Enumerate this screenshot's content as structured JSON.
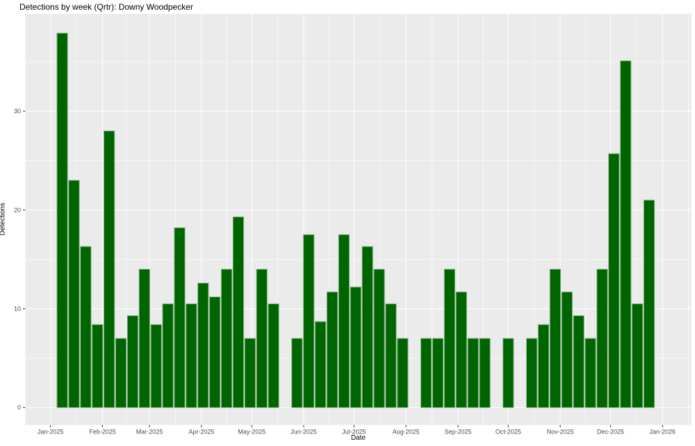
{
  "title": "Detections by week (Qrtr): Downy Woodpecker",
  "chart_data": {
    "type": "bar",
    "title": "Detections by week (Qrtr): Downy Woodpecker",
    "xlabel": "Date",
    "ylabel": "Detections",
    "ylim": [
      0,
      39.9
    ],
    "y_major_ticks": [
      0,
      10,
      20,
      30
    ],
    "y_minor_ticks": [
      5,
      15,
      25,
      35
    ],
    "x_ticks": [
      {
        "label": "Jan-2025",
        "day": 0
      },
      {
        "label": "Feb-2025",
        "day": 31
      },
      {
        "label": "Mar-2025",
        "day": 59
      },
      {
        "label": "Apr-2025",
        "day": 90
      },
      {
        "label": "May-2025",
        "day": 120
      },
      {
        "label": "Jun-2025",
        "day": 151
      },
      {
        "label": "Jul-2025",
        "day": 181
      },
      {
        "label": "Aug-2025",
        "day": 212
      },
      {
        "label": "Sep-2025",
        "day": 243
      },
      {
        "label": "Oct-2025",
        "day": 273
      },
      {
        "label": "Nov-2025",
        "day": 304
      },
      {
        "label": "Dec-2025",
        "day": 334
      },
      {
        "label": "Jan-2026",
        "day": 365
      }
    ],
    "grid": true,
    "legend": "none",
    "panel_bg": "#EBEBEB",
    "grid_major_color": "#FFFFFF",
    "grid_minor_color": "#FFFFFF",
    "tick_color": "#333333",
    "tick_label_color": "#4D4D4D",
    "bar_fill": "#006400",
    "bar_border": "#7DB07D",
    "bars": [
      {
        "week": 1,
        "value": 37.9
      },
      {
        "week": 2,
        "value": 23.0
      },
      {
        "week": 3,
        "value": 16.3
      },
      {
        "week": 4,
        "value": 8.4
      },
      {
        "week": 5,
        "value": 28.0
      },
      {
        "week": 6,
        "value": 7.0
      },
      {
        "week": 7,
        "value": 9.3
      },
      {
        "week": 8,
        "value": 14.0
      },
      {
        "week": 9,
        "value": 8.4
      },
      {
        "week": 10,
        "value": 10.5
      },
      {
        "week": 11,
        "value": 18.2
      },
      {
        "week": 12,
        "value": 10.5
      },
      {
        "week": 13,
        "value": 12.6
      },
      {
        "week": 14,
        "value": 11.2
      },
      {
        "week": 15,
        "value": 14.0
      },
      {
        "week": 16,
        "value": 19.3
      },
      {
        "week": 17,
        "value": 7.0
      },
      {
        "week": 18,
        "value": 14.0
      },
      {
        "week": 19,
        "value": 10.5
      },
      {
        "week": 21,
        "value": 7.0
      },
      {
        "week": 22,
        "value": 17.5
      },
      {
        "week": 23,
        "value": 8.7
      },
      {
        "week": 24,
        "value": 11.7
      },
      {
        "week": 25,
        "value": 17.5
      },
      {
        "week": 26,
        "value": 12.2
      },
      {
        "week": 27,
        "value": 16.3
      },
      {
        "week": 28,
        "value": 14.0
      },
      {
        "week": 29,
        "value": 10.5
      },
      {
        "week": 30,
        "value": 7.0
      },
      {
        "week": 32,
        "value": 7.0
      },
      {
        "week": 33,
        "value": 7.0
      },
      {
        "week": 34,
        "value": 14.0
      },
      {
        "week": 35,
        "value": 11.7
      },
      {
        "week": 36,
        "value": 7.0
      },
      {
        "week": 37,
        "value": 7.0
      },
      {
        "week": 39,
        "value": 7.0
      },
      {
        "week": 41,
        "value": 7.0
      },
      {
        "week": 42,
        "value": 8.4
      },
      {
        "week": 43,
        "value": 14.0
      },
      {
        "week": 44,
        "value": 11.7
      },
      {
        "week": 45,
        "value": 9.3
      },
      {
        "week": 46,
        "value": 7.0
      },
      {
        "week": 47,
        "value": 14.0
      },
      {
        "week": 48,
        "value": 25.7
      },
      {
        "week": 49,
        "value": 35.1
      },
      {
        "week": 50,
        "value": 10.5
      },
      {
        "week": 51,
        "value": 21.0
      }
    ]
  }
}
